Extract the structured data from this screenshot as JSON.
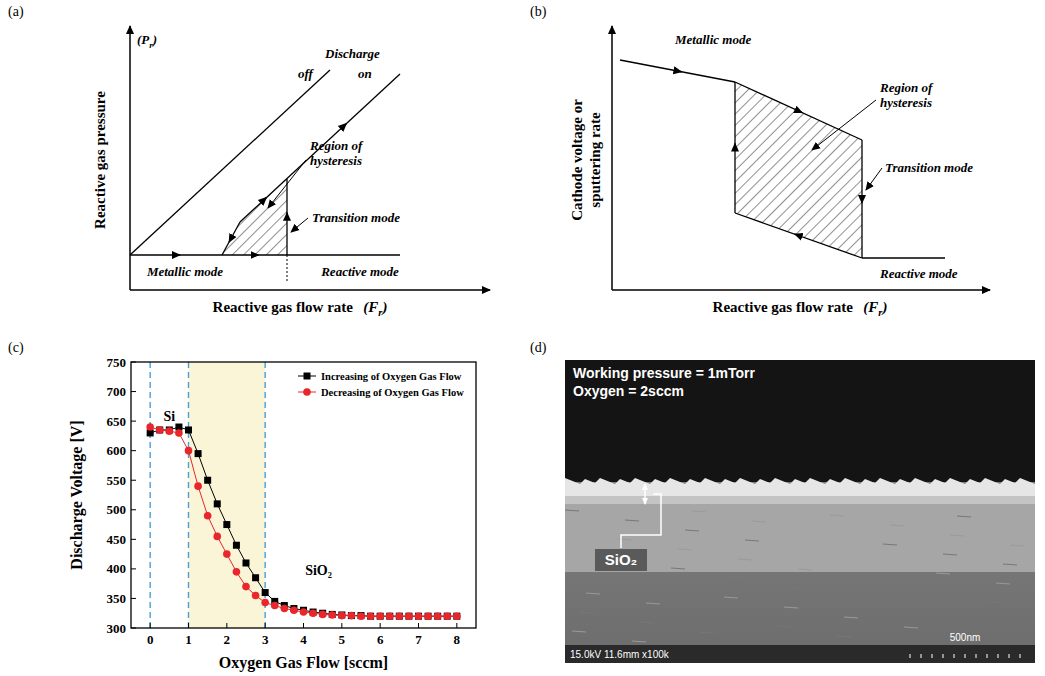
{
  "diagram_a": {
    "label": "(a)",
    "y_axis_title": "Reactive gas pressure",
    "y_symbol": [
      "(P",
      "r",
      ")"
    ],
    "x_axis_title": "Reactive gas flow rate",
    "x_symbol": [
      "(F",
      "r",
      ")"
    ],
    "line_title": "Discharge",
    "line_off": "off",
    "line_on": "on",
    "hysteresis": "Region of hysteresis",
    "transition": "Transition mode",
    "metallic": "Metallic mode",
    "reactive": "Reactive mode"
  },
  "diagram_b": {
    "label": "(b)",
    "y_axis_title": "Cathode voltage or sputtering rate",
    "x_axis_title": "Reactive gas flow rate",
    "x_symbol": [
      "(F",
      "r",
      ")"
    ],
    "hysteresis": "Region of hysteresis",
    "transition": "Transition mode",
    "metallic": "Metallic mode",
    "reactive": "Reactive mode"
  },
  "chart_data": {
    "label": "(c)",
    "type": "line",
    "x_label": "Oxygen Gas Flow [sccm]",
    "y_label": "Discharge Voltage [V]",
    "x": [
      0,
      0.25,
      0.5,
      0.75,
      1,
      1.25,
      1.5,
      1.75,
      2,
      2.25,
      2.5,
      2.75,
      3,
      3.25,
      3.5,
      3.75,
      4,
      4.25,
      4.5,
      4.75,
      5,
      5.25,
      5.5,
      5.75,
      6,
      6.25,
      6.5,
      6.75,
      7,
      7.25,
      7.5,
      7.75,
      8
    ],
    "series": [
      {
        "name": "Increasing of Oxygen Gas Flow",
        "color": "#000000",
        "marker": "square",
        "line_style": "solid",
        "values": [
          630,
          635,
          635,
          640,
          635,
          595,
          550,
          510,
          475,
          440,
          410,
          385,
          360,
          345,
          338,
          333,
          330,
          327,
          325,
          323,
          322,
          321,
          321,
          320,
          320,
          320,
          320,
          320,
          320,
          320,
          320,
          320,
          320
        ]
      },
      {
        "name": "Decreasing of Oxygen Gas Flow",
        "color": "#e8262b",
        "marker": "circle",
        "line_style": "solid",
        "values": [
          640,
          635,
          633,
          630,
          600,
          540,
          490,
          455,
          425,
          395,
          370,
          355,
          343,
          338,
          333,
          330,
          327,
          325,
          323,
          322,
          321,
          321,
          320,
          320,
          320,
          320,
          320,
          320,
          320,
          320,
          320,
          320,
          320
        ]
      }
    ],
    "xlim": [
      -0.5,
      8.5
    ],
    "xticks": [
      0,
      1,
      2,
      3,
      4,
      5,
      6,
      7,
      8
    ],
    "ylim": [
      300,
      750
    ],
    "yticks": [
      300,
      350,
      400,
      450,
      500,
      550,
      600,
      650,
      700,
      750
    ],
    "legend": "upper right",
    "reference_lines": [
      0,
      1,
      3
    ],
    "shaded_range": [
      1,
      3
    ],
    "annotations": [
      "Si",
      "SiO₂"
    ]
  },
  "image": {
    "label": "(d)",
    "lines": [
      "Working pressure = 1mTorr",
      "Oxygen = 2sccm"
    ],
    "layer_label": "SiO₂",
    "footer": "15.0kV 11.6mm x100k",
    "scale_bar": "500nm"
  }
}
